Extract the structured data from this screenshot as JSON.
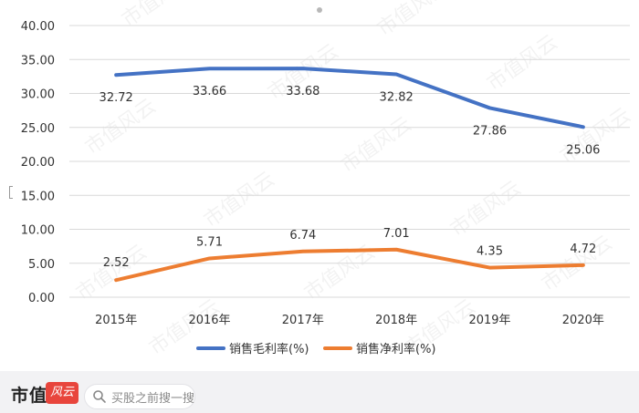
{
  "chart_data": {
    "type": "line",
    "categories": [
      "2015年",
      "2016年",
      "2017年",
      "2018年",
      "2019年",
      "2020年"
    ],
    "y_ticks": [
      "0.00",
      "5.00",
      "10.00",
      "15.00",
      "20.00",
      "25.00",
      "30.00",
      "35.00",
      "40.00"
    ],
    "ylim": [
      0,
      40
    ],
    "grid": true,
    "legend_position": "bottom",
    "series": [
      {
        "name": "销售毛利率(%)",
        "color": "#4472c4",
        "values": [
          32.72,
          33.66,
          33.68,
          32.82,
          27.86,
          25.06
        ],
        "labels": [
          "32.72",
          "33.66",
          "33.68",
          "32.82",
          "27.86",
          "25.06"
        ]
      },
      {
        "name": "销售净利率(%)",
        "color": "#ed7d31",
        "values": [
          2.52,
          5.71,
          6.74,
          7.01,
          4.35,
          4.72
        ],
        "labels": [
          "2.52",
          "5.71",
          "6.74",
          "7.01",
          "4.35",
          "4.72"
        ]
      }
    ]
  },
  "watermark": "市值风云",
  "footer": {
    "brand": "市值",
    "logo": "风云",
    "search_placeholder": "买股之前搜一搜",
    "search_icon": "search-icon"
  }
}
